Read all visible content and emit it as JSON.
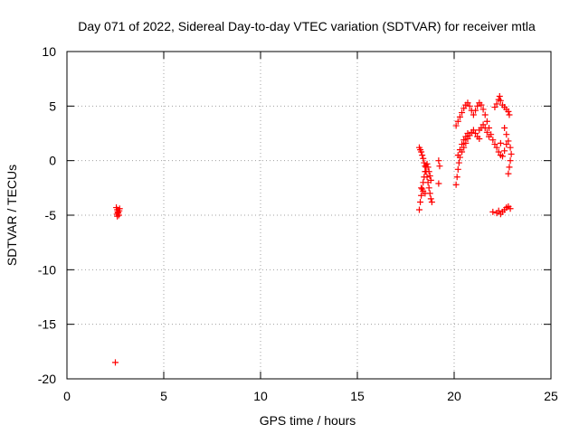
{
  "chart_data": {
    "type": "scatter",
    "title": "Day 071 of 2022, Sidereal Day-to-day VTEC variation (SDTVAR) for receiver mtla",
    "xlabel": "GPS time / hours",
    "ylabel": "SDTVAR / TECUs",
    "xlim": [
      0,
      25
    ],
    "ylim": [
      -20,
      10
    ],
    "xticks": [
      0,
      5,
      10,
      15,
      20,
      25
    ],
    "yticks": [
      -20,
      -15,
      -10,
      -5,
      0,
      5,
      10
    ],
    "grid": true,
    "marker": "+",
    "color": "#ff0000",
    "series": [
      {
        "name": "mtla",
        "points": [
          [
            2.5,
            -18.5
          ],
          [
            2.55,
            -4.3
          ],
          [
            2.6,
            -4.5
          ],
          [
            2.62,
            -4.7
          ],
          [
            2.65,
            -4.8
          ],
          [
            2.68,
            -5.0
          ],
          [
            2.7,
            -4.6
          ],
          [
            2.58,
            -4.9
          ],
          [
            2.72,
            -4.4
          ],
          [
            2.6,
            -5.1
          ],
          [
            18.2,
            -4.5
          ],
          [
            18.25,
            -3.8
          ],
          [
            18.3,
            -3.2
          ],
          [
            18.35,
            -2.6
          ],
          [
            18.4,
            -2.0
          ],
          [
            18.45,
            -1.5
          ],
          [
            18.5,
            -1.0
          ],
          [
            18.55,
            -0.6
          ],
          [
            18.6,
            -0.3
          ],
          [
            18.65,
            -0.6
          ],
          [
            18.7,
            -1.0
          ],
          [
            18.75,
            -1.4
          ],
          [
            18.8,
            -1.8
          ],
          [
            18.2,
            1.2
          ],
          [
            18.25,
            1.0
          ],
          [
            18.3,
            0.8
          ],
          [
            18.35,
            0.5
          ],
          [
            18.4,
            0.2
          ],
          [
            18.45,
            -0.2
          ],
          [
            18.5,
            -0.5
          ],
          [
            18.55,
            -1.0
          ],
          [
            18.6,
            -1.5
          ],
          [
            18.65,
            -2.0
          ],
          [
            18.7,
            -2.5
          ],
          [
            18.75,
            -3.0
          ],
          [
            18.8,
            -3.5
          ],
          [
            18.85,
            -3.8
          ],
          [
            18.3,
            -2.5
          ],
          [
            18.4,
            -2.8
          ],
          [
            18.5,
            -3.0
          ],
          [
            19.2,
            0.0
          ],
          [
            19.25,
            -0.5
          ],
          [
            19.2,
            -2.1
          ],
          [
            20.1,
            -2.2
          ],
          [
            20.15,
            -1.5
          ],
          [
            20.2,
            -0.8
          ],
          [
            20.25,
            -0.2
          ],
          [
            20.3,
            0.3
          ],
          [
            20.4,
            0.8
          ],
          [
            20.5,
            1.2
          ],
          [
            20.6,
            1.6
          ],
          [
            20.7,
            2.0
          ],
          [
            20.8,
            2.3
          ],
          [
            20.9,
            2.6
          ],
          [
            21.0,
            2.8
          ],
          [
            21.1,
            2.5
          ],
          [
            21.2,
            2.2
          ],
          [
            21.3,
            2.0
          ],
          [
            20.1,
            3.2
          ],
          [
            20.2,
            3.6
          ],
          [
            20.3,
            4.0
          ],
          [
            20.4,
            4.4
          ],
          [
            20.5,
            4.8
          ],
          [
            20.6,
            5.1
          ],
          [
            20.7,
            5.3
          ],
          [
            20.8,
            5.0
          ],
          [
            20.9,
            4.6
          ],
          [
            21.0,
            4.2
          ],
          [
            20.2,
            0.5
          ],
          [
            20.3,
            1.0
          ],
          [
            20.4,
            1.5
          ],
          [
            20.5,
            1.9
          ],
          [
            20.6,
            2.2
          ],
          [
            20.7,
            2.5
          ],
          [
            21.1,
            4.6
          ],
          [
            21.2,
            5.0
          ],
          [
            21.3,
            5.3
          ],
          [
            21.4,
            5.1
          ],
          [
            21.5,
            4.7
          ],
          [
            21.6,
            4.2
          ],
          [
            21.7,
            3.6
          ],
          [
            21.8,
            3.0
          ],
          [
            21.9,
            2.4
          ],
          [
            22.0,
            1.9
          ],
          [
            22.1,
            1.5
          ],
          [
            22.2,
            1.2
          ],
          [
            22.3,
            0.8
          ],
          [
            22.4,
            0.5
          ],
          [
            21.3,
            2.8
          ],
          [
            21.4,
            3.0
          ],
          [
            21.5,
            3.3
          ],
          [
            21.6,
            3.0
          ],
          [
            21.7,
            2.6
          ],
          [
            21.8,
            2.2
          ],
          [
            22.0,
            -4.7
          ],
          [
            22.2,
            -4.8
          ],
          [
            22.3,
            -4.6
          ],
          [
            22.4,
            -4.9
          ],
          [
            22.5,
            -4.7
          ],
          [
            22.6,
            -4.5
          ],
          [
            22.7,
            -4.3
          ],
          [
            22.8,
            -4.2
          ],
          [
            22.9,
            -4.4
          ],
          [
            22.1,
            4.9
          ],
          [
            22.2,
            5.2
          ],
          [
            22.3,
            5.6
          ],
          [
            22.35,
            5.9
          ],
          [
            22.4,
            5.5
          ],
          [
            22.5,
            5.1
          ],
          [
            22.6,
            4.9
          ],
          [
            22.7,
            4.7
          ],
          [
            22.8,
            4.5
          ],
          [
            22.85,
            4.2
          ],
          [
            22.6,
            3.0
          ],
          [
            22.7,
            2.4
          ],
          [
            22.8,
            1.8
          ],
          [
            22.9,
            1.2
          ],
          [
            22.95,
            0.6
          ],
          [
            22.9,
            0.0
          ],
          [
            22.85,
            -0.6
          ],
          [
            22.8,
            -1.2
          ],
          [
            22.7,
            1.5
          ],
          [
            22.6,
            0.9
          ],
          [
            22.5,
            0.4
          ],
          [
            22.4,
            1.6
          ]
        ]
      }
    ]
  }
}
